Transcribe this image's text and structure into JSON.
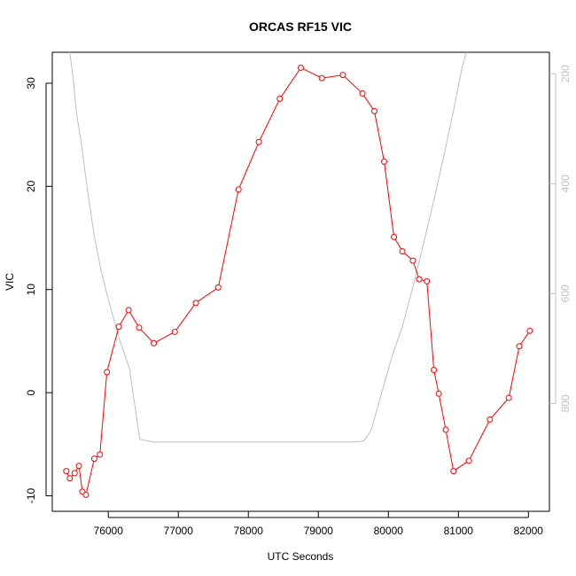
{
  "chart_data": {
    "type": "line",
    "title": "ORCAS RF15 VIC",
    "xlabel": "UTC Seconds",
    "ylabel": "VIC",
    "xlim": [
      75200,
      82300
    ],
    "ylim": [
      -11.5,
      33
    ],
    "x_ticks": [
      "76000",
      "77000",
      "78000",
      "79000",
      "80000",
      "81000",
      "82000"
    ],
    "y_ticks": [
      "-10",
      "0",
      "10",
      "20",
      "30"
    ],
    "y2_ticks": [
      "200",
      "400",
      "600",
      "800"
    ],
    "y2lim": [
      996,
      161
    ],
    "y2_reversed": true,
    "grid": false,
    "series": [
      {
        "color": "#ff0000",
        "axis": "left",
        "style": "line+open-circles",
        "x": [
          75400,
          75450,
          75520,
          75580,
          75630,
          75680,
          75800,
          75880,
          75980,
          76150,
          76290,
          76440,
          76650,
          76950,
          77250,
          77570,
          77860,
          78150,
          78450,
          78750,
          79050,
          79350,
          79630,
          79800,
          79940,
          80080,
          80200,
          80350,
          80440,
          80550,
          80650,
          80720,
          80820,
          80930,
          81150,
          81450,
          81720,
          81870,
          82020
        ],
        "y": [
          -7.6,
          -8.3,
          -7.8,
          -7.1,
          -9.6,
          -9.9,
          -6.4,
          -6.0,
          2.0,
          6.4,
          8.0,
          6.3,
          4.8,
          5.9,
          8.7,
          10.2,
          19.7,
          24.3,
          28.5,
          31.5,
          30.5,
          30.8,
          29.0,
          27.3,
          22.4,
          15.1,
          13.7,
          12.8,
          11.0,
          10.8,
          2.2,
          -0.1,
          -3.6,
          -7.6,
          -6.6,
          -2.6,
          -0.5,
          4.5,
          6.0
        ]
      },
      {
        "color": "#bebebe",
        "axis": "right",
        "style": "line",
        "x": [
          75450,
          75500,
          75550,
          75620,
          75700,
          75800,
          75900,
          76000,
          76150,
          76300,
          76450,
          76650,
          77000,
          78000,
          79000,
          79500,
          79650,
          79750,
          79850,
          79950,
          80050,
          80200,
          80350,
          80500,
          80650,
          80800,
          80950,
          81050,
          81150
        ],
        "y": [
          160,
          210,
          275,
          330,
          410,
          495,
          560,
          610,
          680,
          735,
          865,
          870,
          870,
          870,
          870,
          870,
          868,
          850,
          805,
          760,
          715,
          660,
          588,
          510,
          430,
          345,
          255,
          190,
          145
        ]
      }
    ]
  }
}
